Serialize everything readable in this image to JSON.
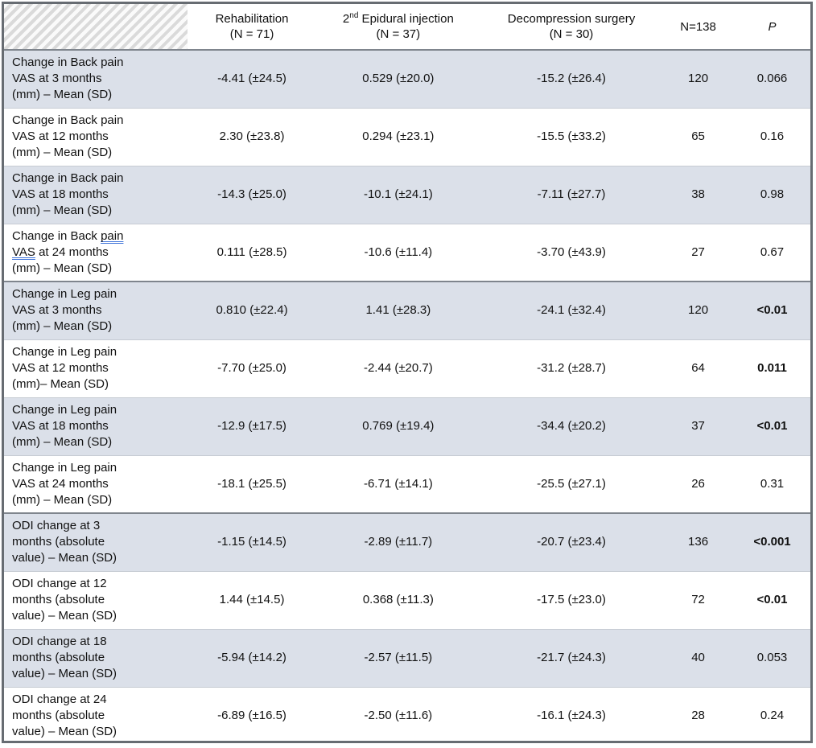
{
  "table": {
    "columns": [
      {
        "id": "row-label",
        "title": "",
        "sub": ""
      },
      {
        "id": "rehabilitation",
        "title": "Rehabilitation",
        "sub": "(N = 71)"
      },
      {
        "id": "epidural",
        "title_prefix": "2",
        "title_sup": "nd",
        "title_rest": " Epidural injection",
        "sub": "(N = 37)"
      },
      {
        "id": "surgery",
        "title": "Decompression surgery",
        "sub": "(N = 30)"
      },
      {
        "id": "total-n",
        "title": "N=138",
        "sub": ""
      },
      {
        "id": "p-value",
        "title": "P",
        "sub": "",
        "italic": true
      }
    ],
    "rows": [
      {
        "label": "Change in Back pain VAS at 3 months (mm) – Mean (SD)",
        "values": [
          "-4.41 (±24.5)",
          "0.529 (±20.0)",
          "-15.2 (±26.4)",
          "120",
          "0.066"
        ],
        "p_bold": false,
        "section_start": true
      },
      {
        "label": "Change in Back pain VAS at 12 months (mm) – Mean (SD)",
        "values": [
          "2.30 (±23.8)",
          "0.294 (±23.1)",
          "-15.5 (±33.2)",
          "65",
          "0.16"
        ],
        "p_bold": false
      },
      {
        "label": "Change in Back pain VAS at 18 months (mm) – Mean (SD)",
        "values": [
          "-14.3 (±25.0)",
          "-10.1 (±24.1)",
          "-7.11 (±27.7)",
          "38",
          "0.98"
        ],
        "p_bold": false
      },
      {
        "label": "Change in Back pain VAS at 24 months (mm) – Mean (SD)",
        "values": [
          "0.111 (±28.5)",
          "-10.6 (±11.4)",
          "-3.70 (±43.9)",
          "27",
          "0.67"
        ],
        "p_bold": false,
        "grammar_underline": [
          "pain",
          "VAS"
        ]
      },
      {
        "label": "Change in Leg pain VAS at 3 months (mm) – Mean (SD)",
        "values": [
          "0.810 (±22.4)",
          "1.41 (±28.3)",
          "-24.1 (±32.4)",
          "120",
          "<0.01"
        ],
        "p_bold": true,
        "section_start": true
      },
      {
        "label": "Change in Leg pain VAS at 12 months (mm)– Mean (SD)",
        "values": [
          "-7.70 (±25.0)",
          "-2.44 (±20.7)",
          "-31.2 (±28.7)",
          "64",
          "0.011"
        ],
        "p_bold": true
      },
      {
        "label": "Change in Leg pain VAS at 18 months (mm) – Mean (SD)",
        "values": [
          "-12.9 (±17.5)",
          "0.769 (±19.4)",
          "-34.4 (±20.2)",
          "37",
          "<0.01"
        ],
        "p_bold": true
      },
      {
        "label": "Change in Leg pain VAS at 24 months (mm) – Mean (SD)",
        "values": [
          "-18.1 (±25.5)",
          "-6.71 (±14.1)",
          "-25.5 (±27.1)",
          "26",
          "0.31"
        ],
        "p_bold": false
      },
      {
        "label": "ODI change at 3 months (absolute value) – Mean (SD)",
        "values": [
          "-1.15 (±14.5)",
          "-2.89 (±11.7)",
          "-20.7 (±23.4)",
          "136",
          "<0.001"
        ],
        "p_bold": true,
        "section_start": true
      },
      {
        "label": "ODI change at 12 months (absolute value) – Mean (SD)",
        "values": [
          "1.44 (±14.5)",
          "0.368 (±11.3)",
          "-17.5 (±23.0)",
          "72",
          "<0.01"
        ],
        "p_bold": true
      },
      {
        "label": "ODI change at 18 months (absolute value) – Mean (SD)",
        "values": [
          "-5.94 (±14.2)",
          "-2.57 (±11.5)",
          "-21.7 (±24.3)",
          "40",
          "0.053"
        ],
        "p_bold": false
      },
      {
        "label": "ODI change at 24 months (absolute value) – Mean (SD)",
        "values": [
          "-6.89 (±16.5)",
          "-2.50 (±11.6)",
          "-16.1 (±24.3)",
          "28",
          "0.24"
        ],
        "p_bold": false
      }
    ],
    "colors": {
      "shaded_row": "#dbe0e9",
      "section_divider": "#7f858d",
      "row_divider": "#c6cbd3",
      "outer_border": "#676c72",
      "grammar_underline": "#3d72d9"
    }
  }
}
